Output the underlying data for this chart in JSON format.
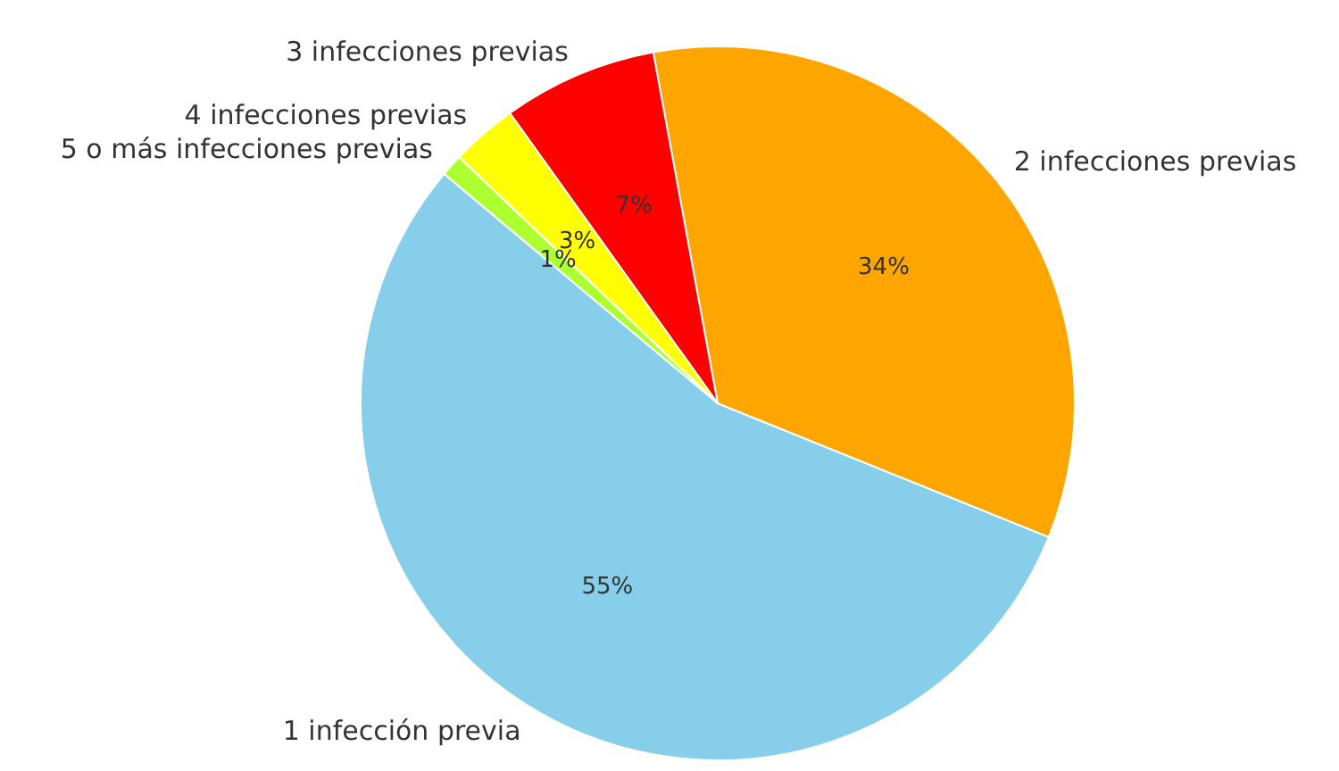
{
  "chart_data": {
    "type": "pie",
    "categories": [
      "1 infección previa",
      "2 infecciones previas",
      "3 infecciones previas",
      "4 infecciones previas",
      "5 o más infecciones previas"
    ],
    "values": [
      55,
      34,
      7,
      3,
      1
    ],
    "value_labels": [
      "55%",
      "34%",
      "7%",
      "3%",
      "1%"
    ],
    "colors": [
      "#87ceeb",
      "#ffa500",
      "#ff0000",
      "#ffff00",
      "#adff2f"
    ],
    "legend": false
  }
}
